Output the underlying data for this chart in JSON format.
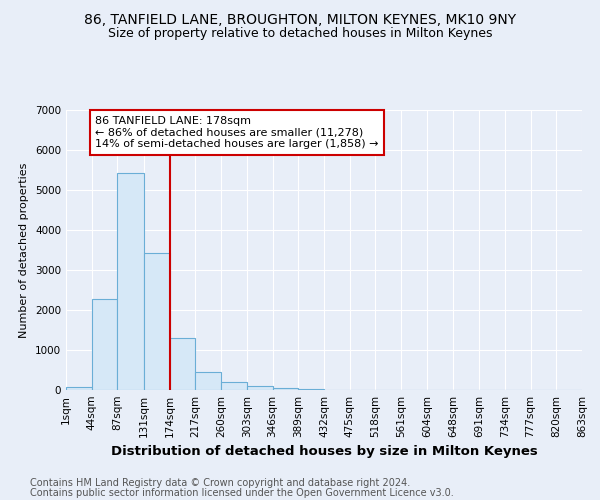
{
  "title1": "86, TANFIELD LANE, BROUGHTON, MILTON KEYNES, MK10 9NY",
  "title2": "Size of property relative to detached houses in Milton Keynes",
  "xlabel": "Distribution of detached houses by size in Milton Keynes",
  "ylabel": "Number of detached properties",
  "footnote1": "Contains HM Land Registry data © Crown copyright and database right 2024.",
  "footnote2": "Contains public sector information licensed under the Open Government Licence v3.0.",
  "annotation_line1": "86 TANFIELD LANE: 178sqm",
  "annotation_line2": "← 86% of detached houses are smaller (11,278)",
  "annotation_line3": "14% of semi-detached houses are larger (1,858) →",
  "bin_edges": [
    1,
    44,
    87,
    131,
    174,
    217,
    260,
    303,
    346,
    389,
    432,
    475,
    518,
    561,
    604,
    648,
    691,
    734,
    777,
    820,
    863
  ],
  "bar_heights": [
    75,
    2280,
    5430,
    3430,
    1290,
    460,
    190,
    90,
    50,
    20,
    0,
    0,
    0,
    0,
    0,
    0,
    0,
    0,
    0,
    0
  ],
  "bar_color": "#d6e8f7",
  "bar_edge_color": "#6aaed6",
  "vline_x": 174,
  "vline_color": "#cc0000",
  "ylim": [
    0,
    7000
  ],
  "yticks": [
    0,
    1000,
    2000,
    3000,
    4000,
    5000,
    6000,
    7000
  ],
  "background_color": "#e8eef8",
  "grid_color": "#ffffff",
  "title1_fontsize": 10,
  "title2_fontsize": 9,
  "xlabel_fontsize": 9.5,
  "ylabel_fontsize": 8,
  "tick_fontsize": 7.5,
  "annotation_fontsize": 8,
  "footnote_fontsize": 7
}
